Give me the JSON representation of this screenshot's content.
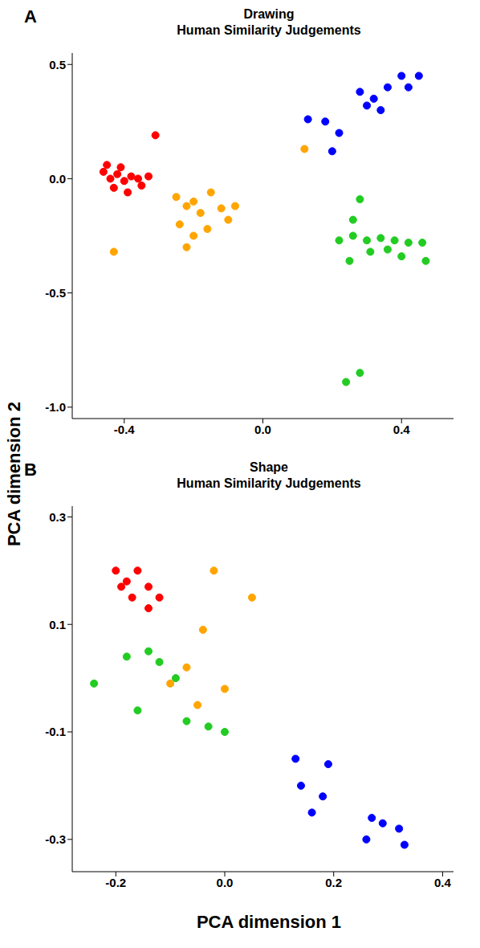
{
  "x_label": "PCA dimension 1",
  "y_label": "PCA dimension 2",
  "chart_data": [
    {
      "type": "scatter",
      "panel": "A",
      "title": "Drawing",
      "subtitle": "Human Similarity Judgements",
      "marker": "circle",
      "grid": false,
      "xlim": [
        -0.55,
        0.55
      ],
      "xticks": [
        -0.4,
        {
          "value": 0,
          "label": "0.0"
        },
        0.4
      ],
      "ylim": [
        -1.05,
        0.55
      ],
      "yticks": [
        0.5,
        {
          "value": 0,
          "label": "0.0"
        },
        -0.5,
        {
          "value": -1,
          "label": "-1.0"
        }
      ],
      "series": [
        {
          "color": "#ff0000",
          "points": [
            [
              -0.46,
              0.03
            ],
            [
              -0.44,
              0.0
            ],
            [
              -0.42,
              0.02
            ],
            [
              -0.4,
              -0.01
            ],
            [
              -0.38,
              0.01
            ],
            [
              -0.36,
              0.0
            ],
            [
              -0.43,
              -0.04
            ],
            [
              -0.39,
              -0.06
            ],
            [
              -0.45,
              0.06
            ],
            [
              -0.41,
              0.05
            ],
            [
              -0.35,
              -0.03
            ],
            [
              -0.33,
              0.01
            ],
            [
              -0.31,
              0.19
            ]
          ]
        },
        {
          "color": "#ffa500",
          "points": [
            [
              -0.25,
              -0.08
            ],
            [
              -0.22,
              -0.12
            ],
            [
              -0.2,
              -0.1
            ],
            [
              -0.18,
              -0.15
            ],
            [
              -0.15,
              -0.06
            ],
            [
              -0.12,
              -0.13
            ],
            [
              -0.08,
              -0.12
            ],
            [
              -0.24,
              -0.2
            ],
            [
              -0.2,
              -0.25
            ],
            [
              -0.16,
              -0.22
            ],
            [
              -0.22,
              -0.3
            ],
            [
              -0.1,
              -0.18
            ],
            [
              -0.43,
              -0.32
            ],
            [
              0.12,
              0.13
            ]
          ]
        },
        {
          "color": "#0000ff",
          "points": [
            [
              0.13,
              0.26
            ],
            [
              0.18,
              0.25
            ],
            [
              0.22,
              0.2
            ],
            [
              0.28,
              0.38
            ],
            [
              0.32,
              0.35
            ],
            [
              0.36,
              0.4
            ],
            [
              0.4,
              0.45
            ],
            [
              0.45,
              0.45
            ],
            [
              0.42,
              0.4
            ],
            [
              0.3,
              0.32
            ],
            [
              0.34,
              0.3
            ],
            [
              0.2,
              0.12
            ]
          ]
        },
        {
          "color": "#22cc22",
          "points": [
            [
              0.28,
              -0.09
            ],
            [
              0.26,
              -0.18
            ],
            [
              0.22,
              -0.27
            ],
            [
              0.26,
              -0.25
            ],
            [
              0.3,
              -0.27
            ],
            [
              0.34,
              -0.26
            ],
            [
              0.38,
              -0.27
            ],
            [
              0.42,
              -0.28
            ],
            [
              0.46,
              -0.28
            ],
            [
              0.31,
              -0.32
            ],
            [
              0.36,
              -0.31
            ],
            [
              0.4,
              -0.34
            ],
            [
              0.47,
              -0.36
            ],
            [
              0.25,
              -0.36
            ],
            [
              0.24,
              -0.89
            ],
            [
              0.28,
              -0.85
            ]
          ]
        }
      ]
    },
    {
      "type": "scatter",
      "panel": "B",
      "title": "Shape",
      "subtitle": "Human Similarity Judgements",
      "marker": "circle",
      "grid": false,
      "xlim": [
        -0.28,
        0.42
      ],
      "xticks": [
        -0.2,
        {
          "value": 0,
          "label": "0.0"
        },
        0.2,
        0.4
      ],
      "ylim": [
        -0.36,
        0.32
      ],
      "yticks": [
        0.3,
        0.1,
        -0.1,
        -0.3
      ],
      "series": [
        {
          "color": "#ff0000",
          "points": [
            [
              -0.18,
              0.18
            ],
            [
              -0.2,
              0.2
            ],
            [
              -0.16,
              0.2
            ],
            [
              -0.14,
              0.17
            ],
            [
              -0.17,
              0.15
            ],
            [
              -0.14,
              0.13
            ],
            [
              -0.12,
              0.15
            ],
            [
              -0.19,
              0.17
            ]
          ]
        },
        {
          "color": "#ffa500",
          "points": [
            [
              -0.02,
              0.2
            ],
            [
              0.05,
              0.15
            ],
            [
              -0.04,
              0.09
            ],
            [
              -0.07,
              0.02
            ],
            [
              0.0,
              -0.02
            ],
            [
              -0.05,
              -0.05
            ],
            [
              -0.1,
              -0.01
            ]
          ]
        },
        {
          "color": "#22cc22",
          "points": [
            [
              -0.24,
              -0.01
            ],
            [
              -0.16,
              -0.06
            ],
            [
              -0.14,
              0.05
            ],
            [
              -0.12,
              0.03
            ],
            [
              -0.09,
              0.0
            ],
            [
              -0.07,
              -0.08
            ],
            [
              -0.03,
              -0.09
            ],
            [
              0.0,
              -0.1
            ],
            [
              -0.18,
              0.04
            ]
          ]
        },
        {
          "color": "#0000ff",
          "points": [
            [
              0.13,
              -0.15
            ],
            [
              0.19,
              -0.16
            ],
            [
              0.14,
              -0.2
            ],
            [
              0.18,
              -0.22
            ],
            [
              0.16,
              -0.25
            ],
            [
              0.27,
              -0.26
            ],
            [
              0.32,
              -0.28
            ],
            [
              0.26,
              -0.3
            ],
            [
              0.33,
              -0.31
            ],
            [
              0.29,
              -0.27
            ]
          ]
        }
      ]
    }
  ]
}
